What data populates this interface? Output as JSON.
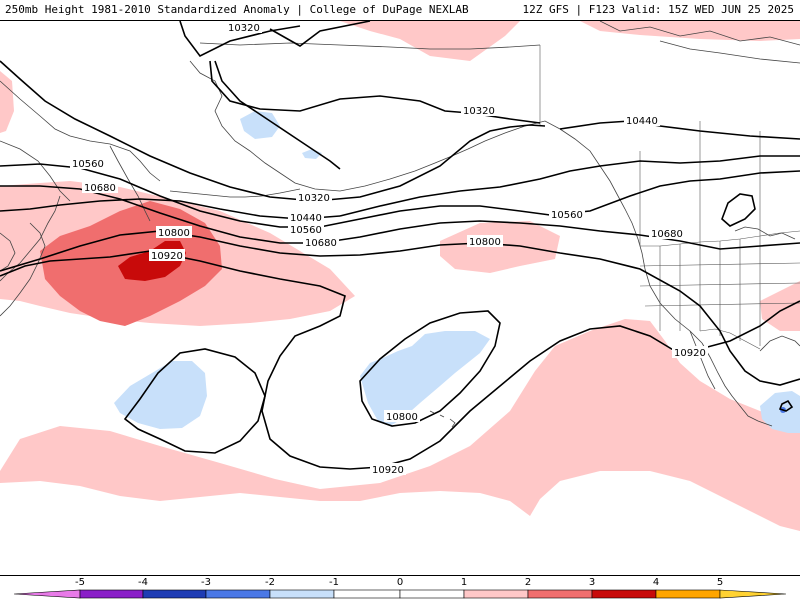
{
  "header": {
    "left_text": "250mb Height 1981-2010 Standardized Anomaly | College of DuPage NEXLAB",
    "right_text": "12Z GFS | F123 Valid: 15Z WED JUN 25 2025"
  },
  "contour_labels": [
    {
      "id": "c10320-a",
      "text": "10320"
    },
    {
      "id": "c10320-b",
      "text": "10320"
    },
    {
      "id": "c10320-c",
      "text": "10320"
    },
    {
      "id": "c10440-a",
      "text": "10440"
    },
    {
      "id": "c10440-b",
      "text": "10440"
    },
    {
      "id": "c10560-a",
      "text": "10560"
    },
    {
      "id": "c10560-b",
      "text": "10560"
    },
    {
      "id": "c10560-c",
      "text": "10560"
    },
    {
      "id": "c10680-a",
      "text": "10680"
    },
    {
      "id": "c10680-b",
      "text": "10680"
    },
    {
      "id": "c10680-c",
      "text": "10680"
    },
    {
      "id": "c10800-a",
      "text": "10800"
    },
    {
      "id": "c10800-b",
      "text": "10800"
    },
    {
      "id": "c10800-c",
      "text": "10800"
    },
    {
      "id": "c10920-a",
      "text": "10920"
    },
    {
      "id": "c10920-b",
      "text": "10920"
    },
    {
      "id": "c10920-c",
      "text": "10920"
    }
  ],
  "colorbar": {
    "ticks": [
      "-5",
      "-4",
      "-3",
      "-2",
      "-1",
      "0",
      "1",
      "2",
      "3",
      "4",
      "5"
    ],
    "colors": {
      "lt_neg5": "#e87ae8",
      "neg5_neg4": "#8a1ec8",
      "neg4_neg3": "#1e3cb4",
      "neg3_neg2": "#4a78e6",
      "neg2_neg1": "#c8e0fa",
      "neg1_0": "#ffffff",
      "0_1": "#ffffff",
      "1_2": "#ffc8c8",
      "2_3": "#f06e6e",
      "3_4": "#c80a0a",
      "4_5": "#ffa500",
      "gt_5": "#ffd232"
    }
  },
  "anomaly_colors": {
    "pos_1_2": "#ffc8c8",
    "pos_2_3": "#f06e6e",
    "pos_3_4": "#c80a0a",
    "neg_1_2": "#c8e0fa",
    "neg_2_3": "#4a78e6"
  }
}
